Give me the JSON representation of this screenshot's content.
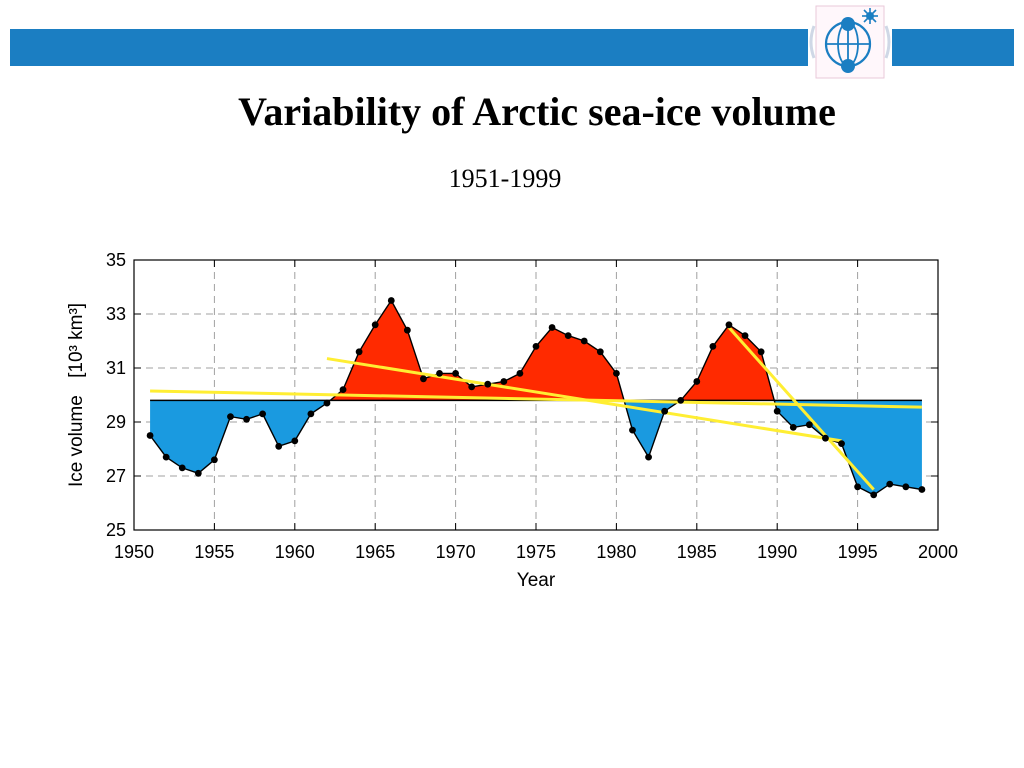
{
  "slide": {
    "title": "Variability of Arctic sea-ice volume",
    "subtitle": "1951-1999"
  },
  "header": {
    "logo_icon": "globe-with-sun-icon",
    "bar_color": "#1b7ec2"
  },
  "chart_data": {
    "type": "area",
    "title": "",
    "xlabel": "Year",
    "ylabel_text": "Ice volume",
    "ylabel_unit": "[10³ km³]",
    "xlim": [
      1950,
      2000
    ],
    "ylim": [
      25,
      35
    ],
    "xticks": [
      1950,
      1955,
      1960,
      1965,
      1970,
      1975,
      1980,
      1985,
      1990,
      1995,
      2000
    ],
    "yticks": [
      25,
      27,
      29,
      31,
      33,
      35
    ],
    "grid": true,
    "baseline": 29.8,
    "colors": {
      "above": "#ff2a00",
      "below": "#1a9ae0",
      "trend": "#ffee33",
      "points": "#000000",
      "grid": "#a0a0a0"
    },
    "series": [
      {
        "x": [
          1951,
          1952,
          1953,
          1954,
          1955,
          1956,
          1957,
          1958,
          1959,
          1960,
          1961,
          1962,
          1963,
          1964,
          1965,
          1966,
          1967,
          1968,
          1969,
          1970,
          1971,
          1972,
          1973,
          1974,
          1975,
          1976,
          1977,
          1978,
          1979,
          1980,
          1981,
          1982,
          1983,
          1984,
          1985,
          1986,
          1987,
          1988,
          1989,
          1990,
          1991,
          1992,
          1993,
          1994,
          1995,
          1996,
          1997,
          1998,
          1999
        ],
        "y": [
          28.5,
          27.7,
          27.3,
          27.1,
          27.6,
          29.2,
          29.1,
          29.3,
          28.1,
          28.3,
          29.3,
          29.7,
          30.2,
          31.6,
          32.6,
          33.5,
          32.4,
          30.6,
          30.8,
          30.8,
          30.3,
          30.4,
          30.5,
          30.8,
          31.8,
          32.5,
          32.2,
          32.0,
          31.6,
          30.8,
          28.7,
          27.7,
          29.4,
          29.8,
          30.5,
          31.8,
          32.6,
          32.2,
          31.6,
          29.4,
          28.8,
          28.9,
          28.4,
          28.2,
          26.6,
          26.3,
          26.7,
          26.6,
          26.5
        ]
      }
    ],
    "trend_lines": [
      {
        "x": [
          1951,
          1999
        ],
        "y": [
          30.15,
          29.55
        ]
      },
      {
        "x": [
          1962,
          1994
        ],
        "y": [
          31.35,
          28.3
        ]
      },
      {
        "x": [
          1987,
          1996
        ],
        "y": [
          32.5,
          26.5
        ]
      }
    ]
  }
}
